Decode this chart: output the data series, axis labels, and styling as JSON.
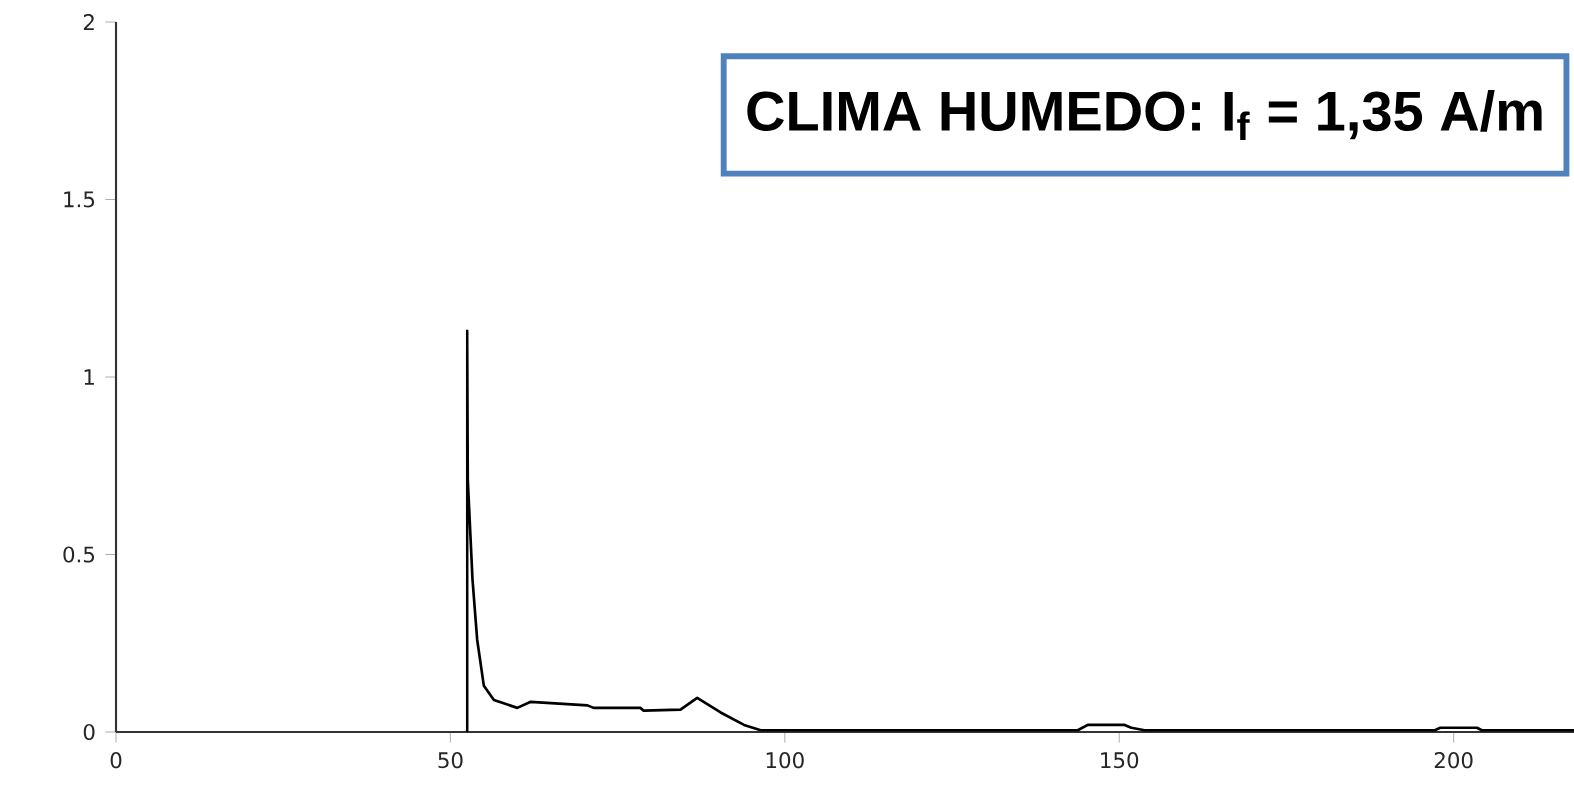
{
  "chart_data": {
    "type": "line",
    "title": "CLIMA HUMEDO: I$_{f}$ = 1,35 A/m",
    "x": [
      52.5,
      52.5,
      52.6,
      53.3,
      54.0,
      55.0,
      56.5,
      60.0,
      62.0,
      70.5,
      71.4,
      78.4,
      78.9,
      84.4,
      86.9,
      90.4,
      93.9,
      96.4,
      143.8,
      145.3,
      150.8,
      151.8,
      153.8,
      197.2,
      198.0,
      203.5,
      204.2,
      218
    ],
    "values": [
      0,
      1.13,
      0.71,
      0.43,
      0.26,
      0.13,
      0.09,
      0.068,
      0.085,
      0.075,
      0.068,
      0.068,
      0.06,
      0.063,
      0.096,
      0.055,
      0.02,
      0.005,
      0.005,
      0.02,
      0.02,
      0.012,
      0.005,
      0.005,
      0.012,
      0.012,
      0.005,
      0.005
    ],
    "color": "#000000",
    "xlim": [
      0,
      218
    ],
    "ylim": [
      0,
      2
    ],
    "xticks": [
      0,
      50,
      100,
      150,
      200
    ],
    "yticks": [
      0,
      0.5,
      1,
      1.5,
      2
    ]
  }
}
